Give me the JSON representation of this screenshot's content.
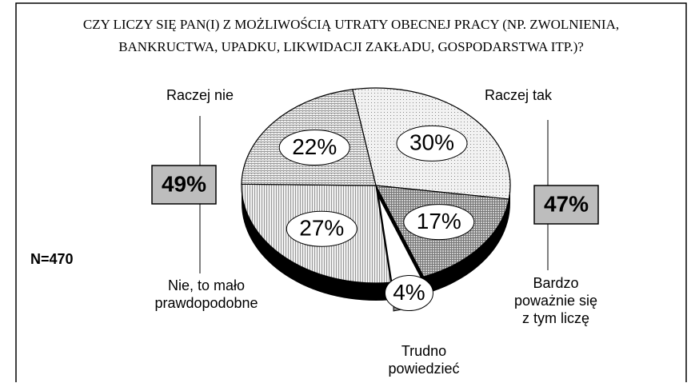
{
  "chart_data": {
    "type": "pie",
    "title": [
      "CZY LICZY SIĘ PAN(I) Z MOŻLIWOŚCIĄ UTRATY OBECNEJ PRACY (NP. ZWOLNIENIA,",
      "BANKRUCTWA, UPADKU, LIKWIDACJI ZAKŁADU, GOSPODARSTWA ITP.)?"
    ],
    "categories": [
      "Raczej tak",
      "Bardzo\npoważnie się\nz tym liczę",
      "Trudno\npowiedzieć",
      "Nie, to mało\nprawdopodobne",
      "Raczej nie"
    ],
    "values": [
      30,
      17,
      4,
      27,
      22
    ],
    "value_labels": [
      "30%",
      "17%",
      "4%",
      "27%",
      "22%"
    ],
    "colors": [
      "#e6e6e6",
      "#b8b8b8",
      "#ffffff",
      "#dcdcdc",
      "#d4d4d4"
    ],
    "groups": [
      {
        "value": 49,
        "label": "49%"
      },
      {
        "value": 47,
        "label": "47%"
      }
    ],
    "note": "N=470"
  }
}
